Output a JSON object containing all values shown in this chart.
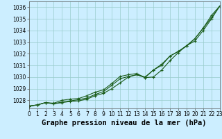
{
  "x": [
    0,
    1,
    2,
    3,
    4,
    5,
    6,
    7,
    8,
    9,
    10,
    11,
    12,
    13,
    14,
    15,
    16,
    17,
    18,
    19,
    20,
    21,
    22,
    23
  ],
  "line1": [
    1027.5,
    1027.6,
    1027.8,
    1027.7,
    1027.8,
    1027.9,
    1027.95,
    1028.1,
    1028.4,
    1028.6,
    1029.0,
    1029.5,
    1030.0,
    1030.2,
    1029.95,
    1030.0,
    1030.6,
    1031.4,
    1032.1,
    1032.7,
    1033.1,
    1034.0,
    1035.0,
    1036.1
  ],
  "line2": [
    1027.5,
    1027.6,
    1027.8,
    1027.7,
    1027.85,
    1027.95,
    1028.05,
    1028.2,
    1028.5,
    1028.75,
    1029.3,
    1029.85,
    1030.05,
    1030.2,
    1030.0,
    1030.6,
    1031.0,
    1031.8,
    1032.2,
    1032.7,
    1033.3,
    1034.2,
    1035.3,
    1036.1
  ],
  "line3": [
    1027.5,
    1027.6,
    1027.8,
    1027.75,
    1028.0,
    1028.1,
    1028.15,
    1028.4,
    1028.7,
    1028.9,
    1029.45,
    1030.05,
    1030.2,
    1030.3,
    1029.95,
    1030.6,
    1031.1,
    1031.8,
    1032.2,
    1032.65,
    1033.3,
    1034.2,
    1035.1,
    1036.1
  ],
  "line_color": "#1a5c1a",
  "background_color": "#cceeff",
  "grid_color": "#99cccc",
  "title": "Graphe pression niveau de la mer (hPa)",
  "ylim_min": 1027.3,
  "ylim_max": 1036.5,
  "yticks": [
    1028,
    1029,
    1030,
    1031,
    1032,
    1033,
    1034,
    1035,
    1036
  ],
  "tick_fontsize": 5.5,
  "title_fontsize": 7.5,
  "marker": "+",
  "markersize": 3.5,
  "linewidth": 0.8
}
